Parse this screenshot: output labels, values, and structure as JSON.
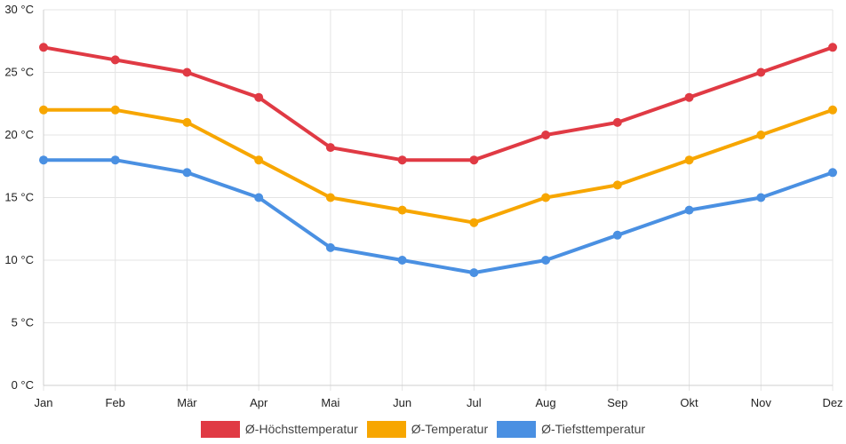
{
  "chart_data": {
    "type": "line",
    "title": "",
    "xlabel": "",
    "ylabel": "",
    "categories": [
      "Jan",
      "Feb",
      "Mär",
      "Apr",
      "Mai",
      "Jun",
      "Jul",
      "Aug",
      "Sep",
      "Okt",
      "Nov",
      "Dez"
    ],
    "ylim": [
      0,
      30
    ],
    "yticks": [
      0,
      5,
      10,
      15,
      20,
      25,
      30
    ],
    "ytick_suffix": " °C",
    "grid": true,
    "legend_position": "bottom",
    "series": [
      {
        "name": "Ø-Höchsttemperatur",
        "color": "#e03a44",
        "values": [
          27,
          26,
          25,
          23,
          19,
          18,
          18,
          20,
          21,
          23,
          25,
          27
        ]
      },
      {
        "name": "Ø-Temperatur",
        "color": "#f7a600",
        "values": [
          22,
          22,
          21,
          18,
          15,
          14,
          13,
          15,
          16,
          18,
          20,
          22
        ]
      },
      {
        "name": "Ø-Tiefsttemperatur",
        "color": "#4a90e2",
        "values": [
          18,
          18,
          17,
          15,
          11,
          10,
          9,
          10,
          12,
          14,
          15,
          17
        ]
      }
    ]
  }
}
